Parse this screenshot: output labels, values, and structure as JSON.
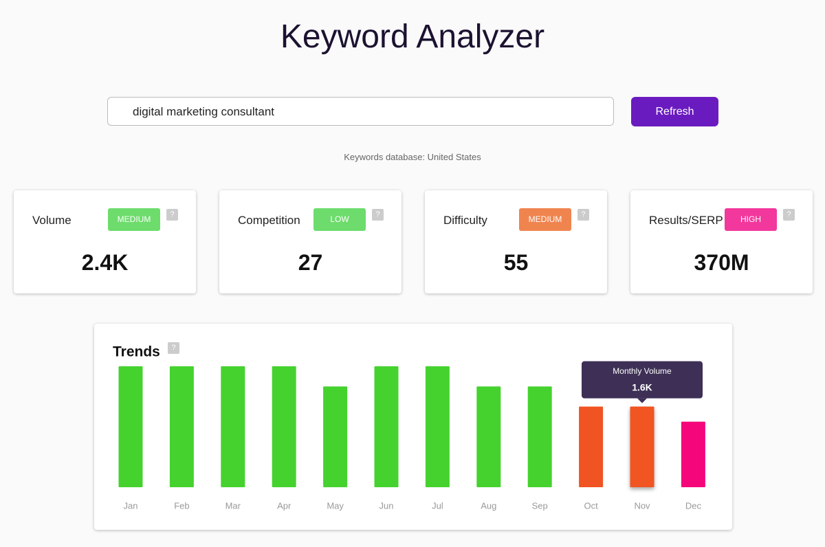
{
  "header": {
    "title": "Keyword Analyzer"
  },
  "search": {
    "query": "digital marketing consultant",
    "button": "Refresh",
    "database_note": "Keywords database: United States"
  },
  "help_icon": "?",
  "cards": [
    {
      "label": "Volume",
      "badge": "MEDIUM",
      "badge_color": "#6ddc6c",
      "value": "2.4K"
    },
    {
      "label": "Competition",
      "badge": "LOW",
      "badge_color": "#6ddc6c",
      "value": "27"
    },
    {
      "label": "Difficulty",
      "badge": "MEDIUM",
      "badge_color": "#f0844f",
      "value": "55"
    },
    {
      "label": "Results/SERP",
      "badge": "HIGH",
      "badge_color": "#f2389c",
      "value": "370M"
    }
  ],
  "chart_data": {
    "type": "bar",
    "title": "Trends",
    "categories": [
      "Jan",
      "Feb",
      "Mar",
      "Apr",
      "May",
      "Jun",
      "Jul",
      "Aug",
      "Sep",
      "Oct",
      "Nov",
      "Dec"
    ],
    "values": [
      2400,
      2400,
      2400,
      2400,
      2000,
      2400,
      2400,
      2000,
      2000,
      1600,
      1600,
      1300
    ],
    "value_labels": [
      null,
      null,
      null,
      null,
      null,
      null,
      null,
      null,
      null,
      null,
      "1.6K",
      null
    ],
    "colors": [
      "#45d22e",
      "#45d22e",
      "#45d22e",
      "#45d22e",
      "#45d22e",
      "#45d22e",
      "#45d22e",
      "#45d22e",
      "#45d22e",
      "#f05422",
      "#f05422",
      "#f5067a"
    ],
    "tooltip_title": "Monthly Volume"
  }
}
